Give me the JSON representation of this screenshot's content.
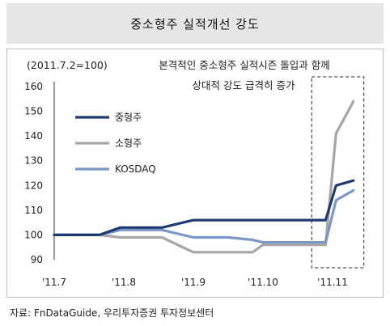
{
  "title": "중소형주 실적개선 강도",
  "source": "자료: FnDataGuide, 우리투자증권 투자정보센터",
  "chart_data": {
    "type": "line",
    "base_note": "(2011.7.2=100)",
    "annotation_lines": [
      "본격적인 중소형주 실적시즌 돌입과 함께",
      "상대적 강도 급격히 증가"
    ],
    "x_ticks": [
      "'11.7",
      "'11.8",
      "'11.9",
      "'11.10",
      "'11.11"
    ],
    "y_ticks": [
      90,
      100,
      110,
      120,
      130,
      140,
      150,
      160
    ],
    "ylim": [
      90,
      160
    ],
    "x": [
      0,
      0.5,
      0.65,
      0.95,
      1.1,
      1.35,
      1.55,
      2.0,
      2.5,
      2.85,
      3.0,
      3.5,
      3.65,
      3.75,
      3.9,
      4.05,
      4.3
    ],
    "series": [
      {
        "name": "중형주",
        "color": "#1f3b73",
        "values": [
          100,
          100,
          100,
          103,
          103,
          103,
          103,
          106,
          106,
          106,
          106,
          106,
          106,
          106,
          106,
          120,
          122
        ]
      },
      {
        "name": "소형주",
        "color": "#a6a6a6",
        "values": [
          100,
          100,
          100,
          99,
          99,
          99,
          99,
          93,
          93,
          93,
          96,
          96,
          96,
          96,
          96,
          141,
          154
        ]
      },
      {
        "name": "KOSDAQ",
        "color": "#7b96c8",
        "values": [
          100,
          100,
          100,
          102,
          102,
          102,
          102,
          99,
          99,
          98,
          97,
          97,
          97,
          97,
          97,
          114,
          118
        ]
      }
    ],
    "highlight_range": [
      3.7,
      4.45
    ],
    "grid": false,
    "legend_position": "middle-left"
  }
}
